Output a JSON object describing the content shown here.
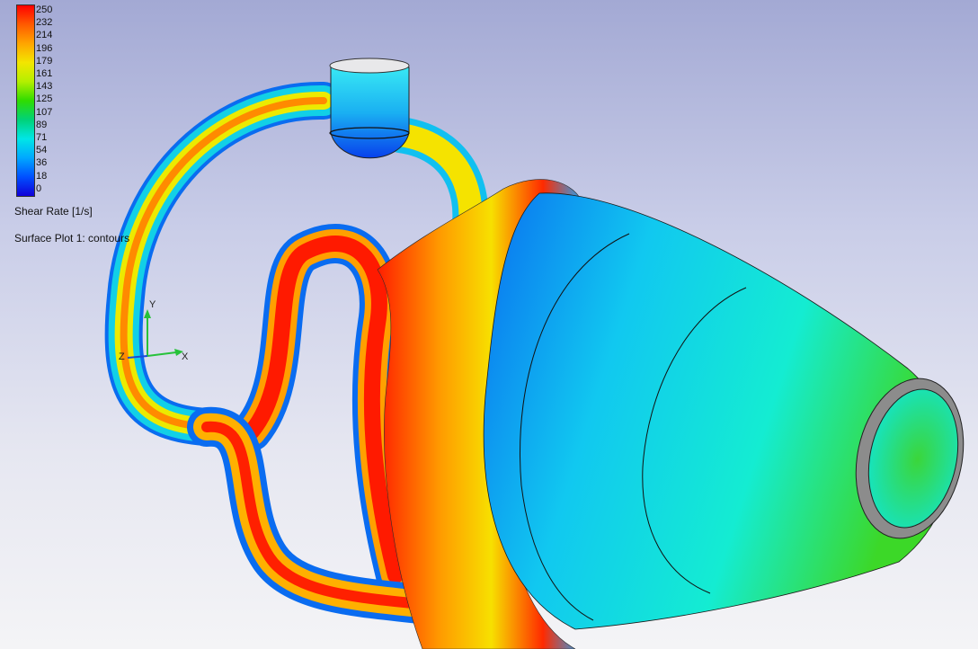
{
  "legend": {
    "ticks": [
      "250",
      "232",
      "214",
      "196",
      "179",
      "161",
      "143",
      "125",
      "107",
      "89",
      "71",
      "54",
      "36",
      "18",
      "0"
    ],
    "quantity_label": "Shear Rate [1/s]",
    "plot_label": "Surface Plot 1: contours"
  },
  "triad": {
    "y": "Y",
    "z": "Z",
    "x": "X"
  },
  "colors": {
    "max": "#ff0000",
    "high": "#ffa500",
    "mid_high": "#f3e600",
    "mid": "#2fdc00",
    "mid_low": "#00e6e6",
    "low": "#0050ff",
    "min": "#1000d8",
    "background_top": "#a3a9d4",
    "background_bottom": "#f4f4f6"
  }
}
